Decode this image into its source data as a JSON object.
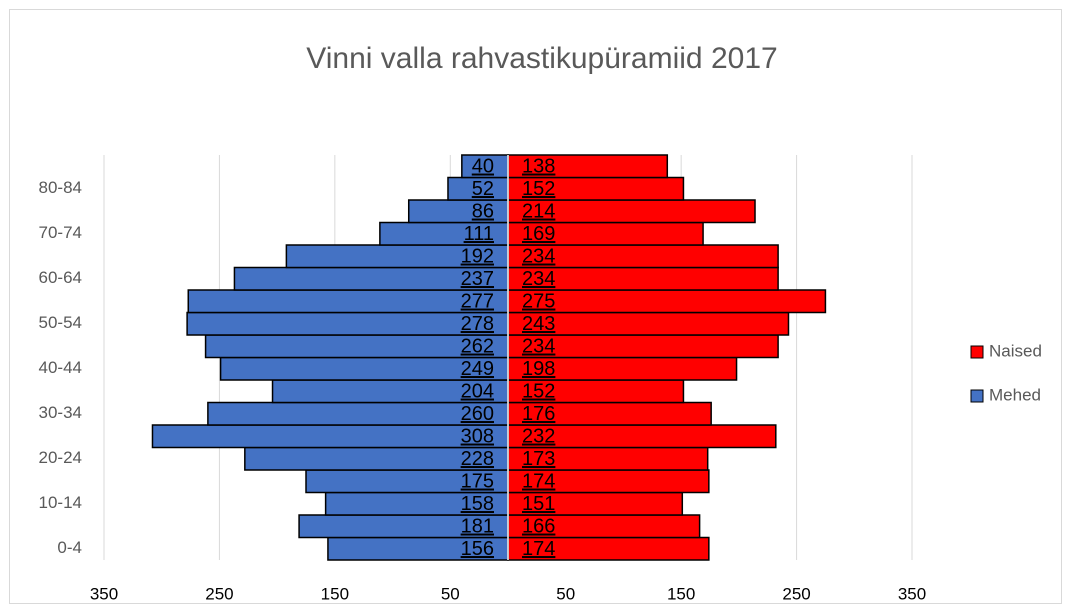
{
  "chart_data": {
    "type": "pyramid",
    "title": "Vinni valla rahvastikupüramiid 2017",
    "categories": [
      "0-4",
      null,
      "10-14",
      null,
      "20-24",
      null,
      "30-34",
      null,
      "40-44",
      null,
      "50-54",
      null,
      "60-64",
      null,
      "70-74",
      null,
      "80-84",
      null
    ],
    "series": [
      {
        "name": "Naised",
        "color": "#ff0000",
        "side": "right",
        "values": [
          174,
          166,
          151,
          174,
          173,
          232,
          176,
          152,
          198,
          234,
          243,
          275,
          234,
          234,
          169,
          214,
          152,
          138
        ]
      },
      {
        "name": "Mehed",
        "color": "#4472c4",
        "side": "left",
        "values": [
          156,
          181,
          158,
          175,
          228,
          308,
          260,
          204,
          249,
          262,
          278,
          277,
          237,
          192,
          111,
          86,
          52,
          40
        ]
      }
    ],
    "xlim": [
      -350,
      350
    ],
    "xticks": [
      {
        "value": -350,
        "label": "350"
      },
      {
        "value": -250,
        "label": "250"
      },
      {
        "value": -150,
        "label": "150"
      },
      {
        "value": -50,
        "label": "50"
      },
      {
        "value": 50,
        "label": "50"
      },
      {
        "value": 150,
        "label": "150"
      },
      {
        "value": 250,
        "label": "250"
      },
      {
        "value": 350,
        "label": "350"
      }
    ],
    "grid": true,
    "legend": "right"
  }
}
